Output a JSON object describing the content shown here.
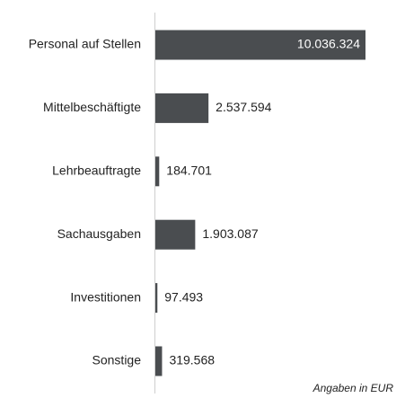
{
  "chart_data": {
    "type": "bar",
    "orientation": "horizontal",
    "categories": [
      "Personal auf Stellen",
      "Mittelbeschäftigte",
      "Lehrbeauftragte",
      "Sachausgaben",
      "Investitionen",
      "Sonstige"
    ],
    "values": [
      10036324,
      2537594,
      184701,
      1903087,
      97493,
      319568
    ],
    "value_labels": [
      "10.036.324",
      "2.537.594",
      "184.701",
      "1.903.087",
      "97.493",
      "319.568"
    ],
    "color": "#4a4d50",
    "note": "Angaben in EUR"
  }
}
